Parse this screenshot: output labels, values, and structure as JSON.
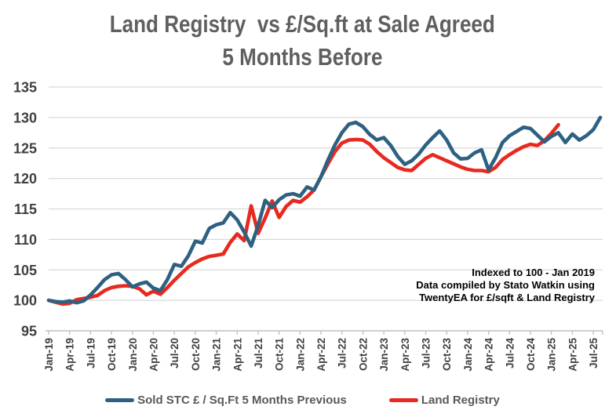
{
  "title": {
    "line1": "Land Registry  vs £/Sq.ft at Sale Agreed",
    "line2": "5 Months Before"
  },
  "annotation": {
    "lines": [
      "Indexed to 100 - Jan 2019",
      "Data compiled by Stato Watkin using",
      "TwentyEA for £/sqft & Land Registry"
    ]
  },
  "colors": {
    "title_text": "#5f5f5f",
    "axis_labels": "#404040",
    "gridline": "#d9d9d9",
    "axis_line": "#bfbfbf",
    "legend_text": "#595959",
    "series_blue": "#2E6181",
    "series_red": "#E8291F"
  },
  "chart_data": {
    "type": "line",
    "title": "Land Registry  vs £/Sq.ft at Sale Agreed 5 Months Before",
    "xlabel": "",
    "ylabel": "",
    "ylim": [
      95,
      135
    ],
    "yticks": [
      95,
      100,
      105,
      110,
      115,
      120,
      125,
      130,
      135
    ],
    "grid": "horizontal",
    "legend_position": "bottom",
    "x_tick_labels": [
      "Jan-19",
      "Apr-19",
      "Jul-19",
      "Oct-19",
      "Jan-20",
      "Apr-20",
      "Jul-20",
      "Oct-20",
      "Jan-21",
      "Apr-21",
      "Jul-21",
      "Oct-21",
      "Jan-22",
      "Apr-22",
      "Jul-22",
      "Oct-22",
      "Jan-23",
      "Apr-23",
      "Jul-23",
      "Oct-23",
      "Jan-24",
      "Apr-24",
      "Jul-24",
      "Oct-24",
      "Jan-25",
      "Apr-25",
      "Jul-25"
    ],
    "tick_every_months": 3,
    "x_months": [
      "Jan-19",
      "Feb-19",
      "Mar-19",
      "Apr-19",
      "May-19",
      "Jun-19",
      "Jul-19",
      "Aug-19",
      "Sep-19",
      "Oct-19",
      "Nov-19",
      "Dec-19",
      "Jan-20",
      "Feb-20",
      "Mar-20",
      "Apr-20",
      "May-20",
      "Jun-20",
      "Jul-20",
      "Aug-20",
      "Sep-20",
      "Oct-20",
      "Nov-20",
      "Dec-20",
      "Jan-21",
      "Feb-21",
      "Mar-21",
      "Apr-21",
      "May-21",
      "Jun-21",
      "Jul-21",
      "Aug-21",
      "Sep-21",
      "Oct-21",
      "Nov-21",
      "Dec-21",
      "Jan-22",
      "Feb-22",
      "Mar-22",
      "Apr-22",
      "May-22",
      "Jun-22",
      "Jul-22",
      "Aug-22",
      "Sep-22",
      "Oct-22",
      "Nov-22",
      "Dec-22",
      "Jan-23",
      "Feb-23",
      "Mar-23",
      "Apr-23",
      "May-23",
      "Jun-23",
      "Jul-23",
      "Aug-23",
      "Sep-23",
      "Oct-23",
      "Nov-23",
      "Dec-23",
      "Jan-24",
      "Feb-24",
      "Mar-24",
      "Apr-24",
      "May-24",
      "Jun-24",
      "Jul-24",
      "Aug-24",
      "Sep-24",
      "Oct-24",
      "Nov-24",
      "Dec-24",
      "Jan-25",
      "Feb-25",
      "Mar-25",
      "Apr-25",
      "May-25",
      "Jun-25",
      "Jul-25",
      "Aug-25"
    ],
    "series": [
      {
        "name": "Sold STC £ / Sq.Ft 5 Months Previous",
        "color": "#2E6181",
        "start_month": "Jan-19",
        "end_month": "Aug-25",
        "values": [
          100.0,
          99.8,
          99.7,
          99.9,
          99.6,
          99.9,
          100.9,
          102.1,
          103.4,
          104.2,
          104.4,
          103.4,
          102.2,
          102.7,
          103.0,
          102.0,
          101.6,
          103.4,
          105.9,
          105.6,
          107.3,
          109.7,
          109.4,
          111.8,
          112.4,
          112.7,
          114.4,
          113.2,
          111.2,
          108.9,
          112.3,
          116.4,
          115.2,
          116.5,
          117.3,
          117.5,
          117.1,
          118.6,
          118.1,
          120.3,
          123.0,
          125.5,
          127.5,
          128.9,
          129.2,
          128.5,
          127.2,
          126.3,
          126.7,
          125.4,
          123.6,
          122.3,
          122.9,
          124.0,
          125.5,
          126.7,
          127.8,
          126.3,
          124.2,
          123.2,
          123.3,
          124.2,
          124.7,
          121.4,
          123.4,
          125.9,
          127.0,
          127.7,
          128.4,
          128.2,
          127.1,
          126.0,
          126.9,
          127.5,
          125.9,
          127.3,
          126.3,
          127.0,
          128.0,
          130.0
        ]
      },
      {
        "name": "Land Registry",
        "color": "#E8291F",
        "start_month": "Jan-19",
        "end_month": "Feb-25",
        "values": [
          100.0,
          99.7,
          99.4,
          99.5,
          100.1,
          100.3,
          100.5,
          100.8,
          101.6,
          102.1,
          102.3,
          102.4,
          102.3,
          101.9,
          100.9,
          101.5,
          101.0,
          102.1,
          103.3,
          104.4,
          105.5,
          106.2,
          106.8,
          107.2,
          107.4,
          107.6,
          109.5,
          110.9,
          109.8,
          115.5,
          111.0,
          113.5,
          116.3,
          113.6,
          115.4,
          116.4,
          116.1,
          117.0,
          118.1,
          120.3,
          122.4,
          124.4,
          125.8,
          126.3,
          126.4,
          126.3,
          125.6,
          124.4,
          123.4,
          122.6,
          121.8,
          121.4,
          121.3,
          122.3,
          123.3,
          123.9,
          123.4,
          122.9,
          122.4,
          121.9,
          121.5,
          121.3,
          121.3,
          121.1,
          121.8,
          123.1,
          123.9,
          124.6,
          125.2,
          125.6,
          125.4,
          126.2,
          127.4,
          128.8
        ]
      }
    ]
  }
}
